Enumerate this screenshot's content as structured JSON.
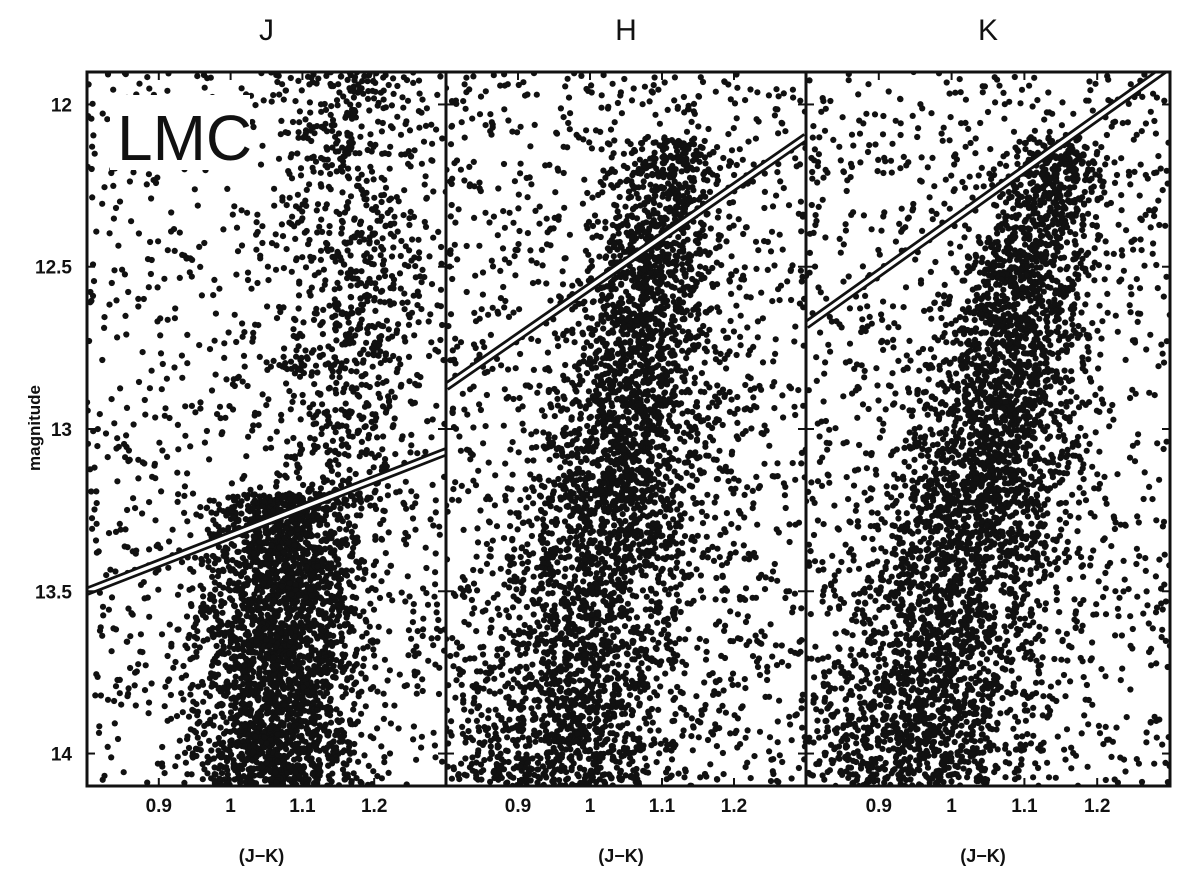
{
  "chart_data": [
    {
      "type": "scatter",
      "title": "J",
      "xlabel": "(J−K)",
      "ylabel": "magnitude",
      "annotation": "LMC",
      "xlim": [
        0.8,
        1.3
      ],
      "ylim": [
        14.1,
        11.9
      ],
      "y_inverted": true,
      "xticks": [
        "0.9",
        "1",
        "1.1",
        "1.2"
      ],
      "yticks": [
        "12",
        "12.5",
        "13",
        "13.5",
        "14"
      ],
      "boundary_line": {
        "x": [
          0.8,
          1.3
        ],
        "y": [
          13.5,
          13.07
        ]
      },
      "density": {
        "sparse_count": 1100,
        "dense_count": 2600,
        "dense_x_range": [
          0.98,
          1.2
        ],
        "dense_y_start": 13.2,
        "upper_clump_x": 1.17,
        "upper_clump_y": 12.6
      }
    },
    {
      "type": "scatter",
      "title": "H",
      "xlabel": "(J−K)",
      "xlim": [
        0.8,
        1.3
      ],
      "ylim": [
        14.1,
        11.9
      ],
      "y_inverted": true,
      "xticks": [
        "0.9",
        "1",
        "1.1",
        "1.2"
      ],
      "boundary_line": {
        "x": [
          0.8,
          1.3
        ],
        "y": [
          12.87,
          12.1
        ]
      },
      "density": {
        "sparse_count": 1400,
        "dense_count": 3400,
        "branch_top_x": 1.12,
        "branch_bottom_x": 0.96
      }
    },
    {
      "type": "scatter",
      "title": "K",
      "xlabel": "(J−K)",
      "xlim": [
        0.8,
        1.3
      ],
      "ylim": [
        14.1,
        11.9
      ],
      "y_inverted": true,
      "xticks": [
        "0.9",
        "1",
        "1.1",
        "1.2"
      ],
      "boundary_line": {
        "x": [
          0.8,
          1.3
        ],
        "y": [
          12.68,
          11.88
        ]
      },
      "density": {
        "sparse_count": 1300,
        "dense_count": 3600,
        "branch_top_x": 1.15,
        "branch_bottom_x": 0.94
      }
    }
  ],
  "colors": {
    "points": "#111111",
    "frame": "#111111",
    "boundary": "#ffffff"
  }
}
